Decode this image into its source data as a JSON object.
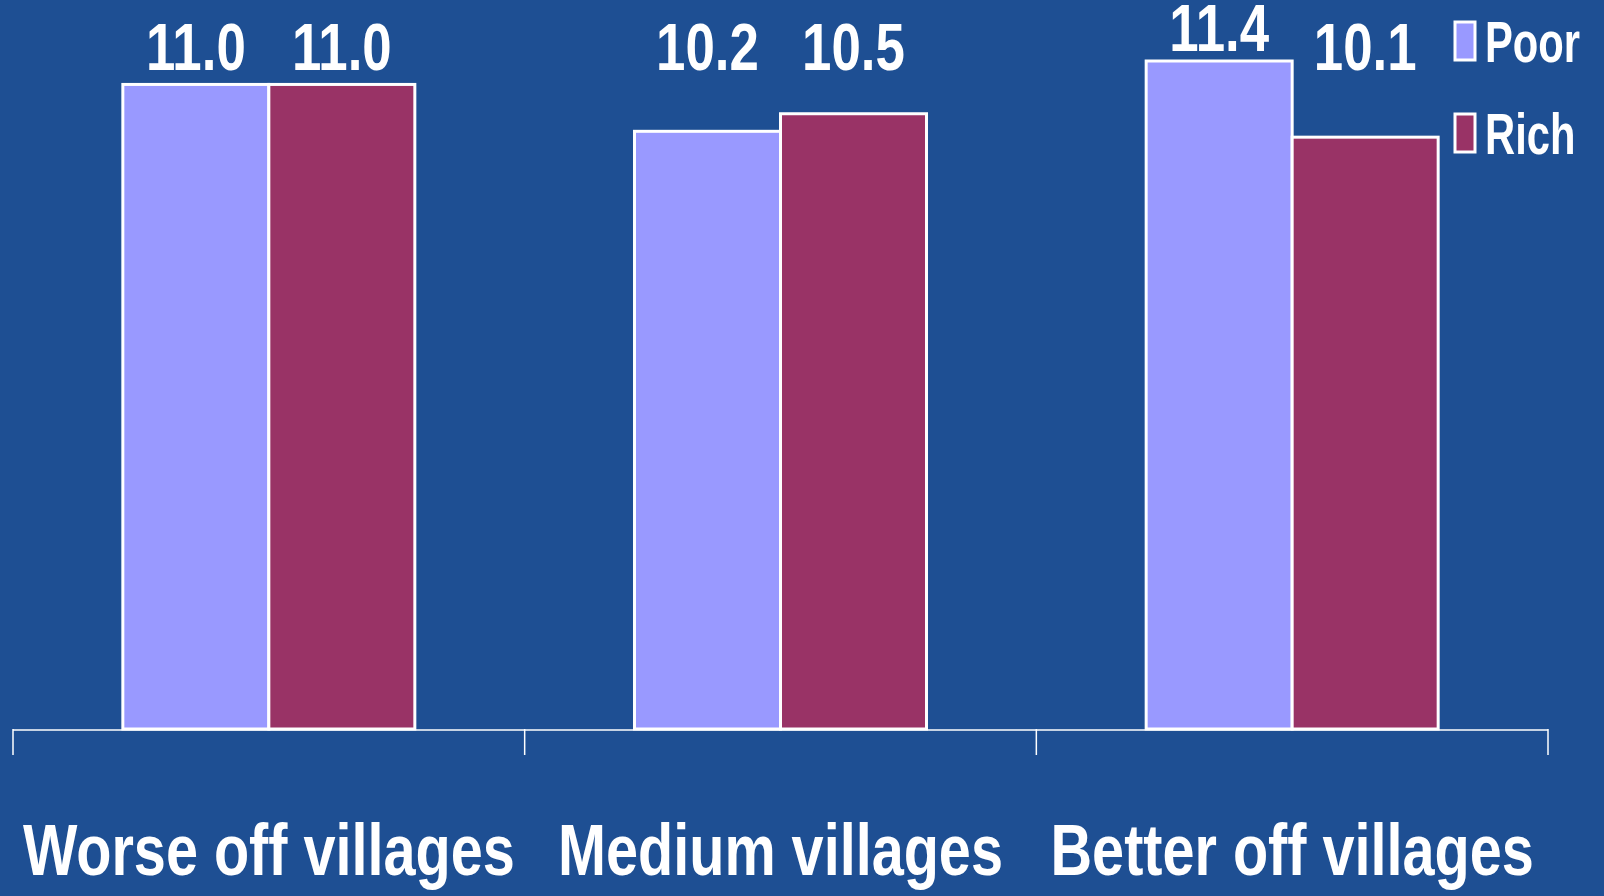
{
  "chart_data": {
    "type": "bar",
    "categories": [
      "Worse off villages",
      "Medium villages",
      "Better off villages"
    ],
    "series": [
      {
        "name": "Poor",
        "color": "#9999ff",
        "values": [
          11.0,
          10.2,
          11.4
        ],
        "value_labels": [
          "11.0",
          "10.2",
          "11.4"
        ]
      },
      {
        "name": "Rich",
        "color": "#993366",
        "values": [
          11.0,
          10.5,
          10.1
        ],
        "value_labels": [
          "11.0",
          "10.5",
          "10.1"
        ]
      }
    ],
    "legend": "top right",
    "grid": false
  }
}
